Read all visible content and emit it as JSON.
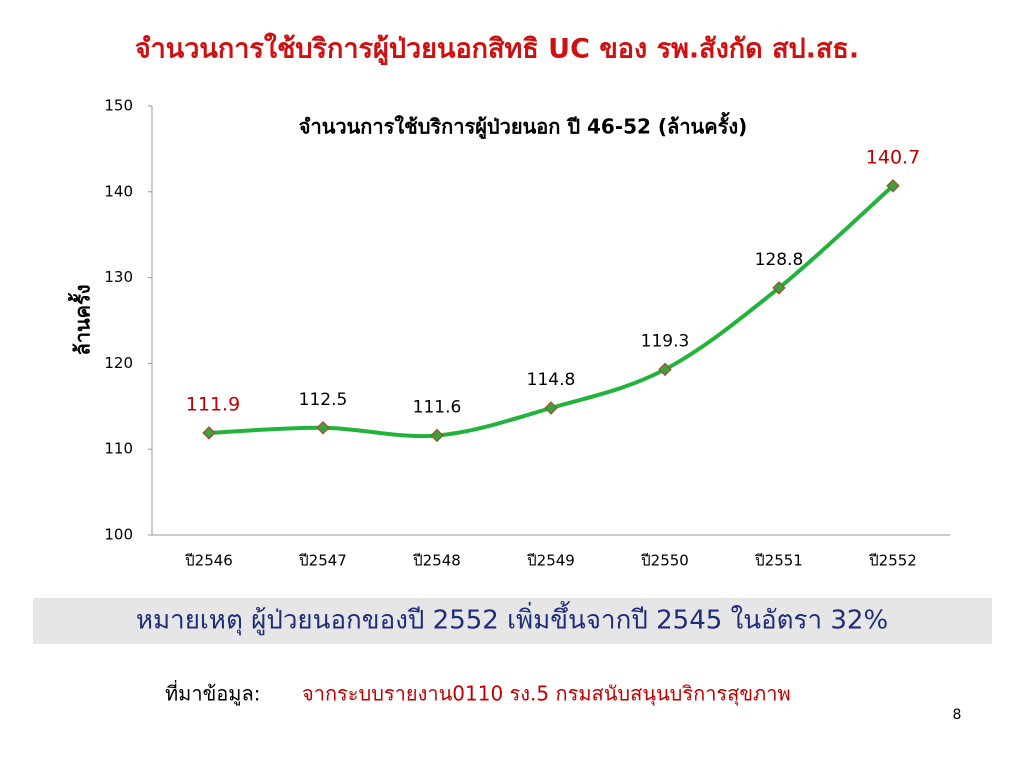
{
  "slide_title": "จำนวนการใช้บริการผู้ป่วยนอกสิทธิ UC ของ รพ.สังกัด สป.สธ.",
  "chart_data": {
    "type": "line",
    "title": "จำนวนการใช้บริการผู้ป่วยนอก  ปี 46-52 (ล้านครั้ง)",
    "y_label": "ล้านครั้ง",
    "categories": [
      "ปี2546",
      "ปี2547",
      "ปี2548",
      "ปี2549",
      "ปี2550",
      "ปี2551",
      "ปี2552"
    ],
    "values": [
      111.9,
      112.5,
      111.6,
      114.8,
      119.3,
      128.8,
      140.7
    ],
    "value_label_colors": [
      "#c00000",
      "#000000",
      "#000000",
      "#000000",
      "#000000",
      "#000000",
      "#c00000"
    ],
    "color": "#22b33c",
    "marker_color": "#3aa040",
    "marker_edge_color": "#b04020",
    "ylim": [
      100,
      150
    ],
    "yticks": [
      100,
      110,
      120,
      130,
      140,
      150
    ],
    "grid": false
  },
  "note": "หมายเหตุ  ผู้ป่วยนอกของปี 2552 เพิ่มขึ้นจากปี 2545 ในอัตรา 32%",
  "source_label": "ที่มาข้อมูล:",
  "source_text": "จากระบบรายงาน0110 รง.5 กรมสนับสนุนบริการสุขภาพ",
  "page_number": "8"
}
